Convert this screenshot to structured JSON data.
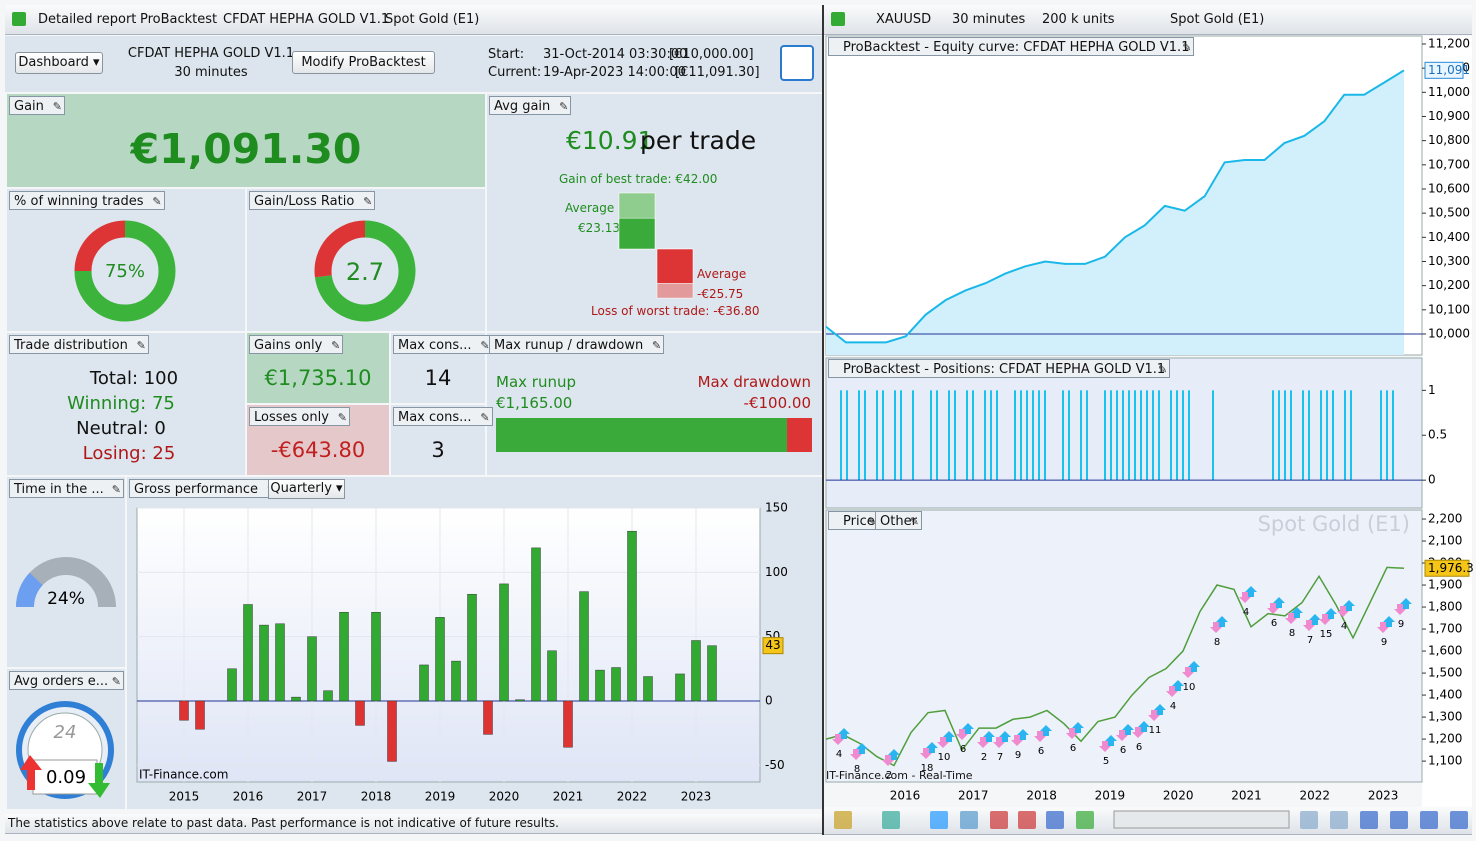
{
  "left": {
    "tabs": [
      "Detailed report",
      "ProBacktest",
      "CFDAT HEPHA GOLD V1.1",
      "Spot Gold (E1)"
    ],
    "toolbar": {
      "dashboard": "Dashboard",
      "system": "CFDAT HEPHA GOLD V1.1",
      "timeframe": "30 minutes",
      "modify": "Modify ProBacktest",
      "start_label": "Start:",
      "start_date": "31-Oct-2014 03:30:00",
      "start_capital": "[€10,000.00]",
      "current_label": "Current:",
      "current_date": "19-Apr-2023 14:00:00",
      "current_capital": "[€11,091.30]"
    },
    "gain": {
      "title": "Gain",
      "value": "€1,091.30"
    },
    "avg_gain": {
      "title": "Avg gain",
      "value": "€10.91",
      "unit": "per trade",
      "best_label": "Gain of best trade:",
      "best": {
        "value": 42,
        "label": "€42.00"
      },
      "average_win_label": "Average",
      "average_win": {
        "value": 23.13,
        "label": "€23.13"
      },
      "average_loss_label": "Average",
      "average_loss": {
        "value": -25.75,
        "label": "-€25.75"
      },
      "worst_label": "Loss of worst trade:",
      "worst": {
        "value": -36.8,
        "label": "-€36.80"
      }
    },
    "win_pct": {
      "title": "% of winning trades",
      "value": 75,
      "label": "75%"
    },
    "gl_ratio": {
      "title": "Gain/Loss Ratio",
      "value": 2.7
    },
    "distribution": {
      "title": "Trade distribution",
      "total": "Total: 100",
      "winning": "Winning: 75",
      "neutral": "Neutral: 0",
      "losing": "Losing: 25"
    },
    "gains_only": {
      "title": "Gains only",
      "value": "€1,735.10"
    },
    "losses_only": {
      "title": "Losses only",
      "value": "-€643.80"
    },
    "max_cons_win": {
      "title": "Max cons...",
      "value": 14
    },
    "max_cons_loss": {
      "title": "Max cons...",
      "value": 3
    },
    "runup": {
      "title": "Max runup / drawdown",
      "runup_label": "Max runup",
      "runup": {
        "value": 1165,
        "label": "€1,165.00"
      },
      "drawdown_label": "Max drawdown",
      "drawdown": {
        "value": -100,
        "label": "-€100.00"
      }
    },
    "time_in_market": {
      "title": "Time in the ...",
      "value": 24,
      "label": "24%"
    },
    "avg_orders": {
      "title": "Avg orders e...",
      "dial": 24,
      "value": 0.09
    },
    "gross": {
      "title": "Gross performance",
      "period": "Quarterly",
      "watermark": "IT-Finance.com",
      "categories": [
        "2015",
        null,
        null,
        null,
        "2016",
        null,
        null,
        null,
        "2017",
        null,
        null,
        null,
        "2018",
        null,
        null,
        null,
        "2019",
        null,
        null,
        null,
        "2020",
        null,
        null,
        null,
        "2021",
        null,
        null,
        null,
        "2022",
        null,
        null,
        null,
        "2023",
        null
      ],
      "values": [
        -15,
        -22,
        0,
        25,
        75,
        59,
        60,
        3,
        50,
        8,
        69,
        -19,
        69,
        -47,
        0,
        28,
        65,
        31,
        83,
        -26,
        91,
        1,
        119,
        39,
        -36,
        85,
        24,
        26,
        132,
        19,
        0,
        21,
        47,
        43
      ],
      "ylim": [
        -63,
        150
      ],
      "yticks": [
        -50,
        0,
        50,
        100,
        150
      ],
      "color": "#33a833",
      "neg_color": "#dd3333"
    },
    "status": "The statistics above relate to past data. Past performance is not indicative of future results."
  },
  "right": {
    "tabs": {
      "symbol": "XAUUSD",
      "timeframe": "30 minutes",
      "units": "200 k units",
      "instrument": "Spot Gold (E1)"
    },
    "equity": {
      "title": "ProBacktest - Equity curve: CFDAT HEPHA GOLD V1.1",
      "color": "#1ab8e8",
      "values": [
        10030,
        9965,
        9965,
        9965,
        9990,
        10080,
        10140,
        10180,
        10210,
        10250,
        10280,
        10300,
        10290,
        10290,
        10320,
        10400,
        10450,
        10530,
        10510,
        10570,
        10710,
        10720,
        10720,
        10790,
        10820,
        10880,
        10990,
        10990,
        11040,
        11091
      ],
      "ylim": [
        9913,
        11233
      ],
      "yticks": [
        {
          "value": 10000,
          "label": "10,000"
        },
        {
          "value": 10100,
          "label": "10,100"
        },
        {
          "value": 10200,
          "label": "10,200"
        },
        {
          "value": 10300,
          "label": "10,300"
        },
        {
          "value": 10400,
          "label": "10,400"
        },
        {
          "value": 10500,
          "label": "10,500"
        },
        {
          "value": 10600,
          "label": "10,600"
        },
        {
          "value": 10700,
          "label": "10,700"
        },
        {
          "value": 10800,
          "label": "10,800"
        },
        {
          "value": 10900,
          "label": "10,900"
        },
        {
          "value": 11000,
          "label": "11,000"
        },
        {
          "value": 11100,
          "label": "11,100"
        },
        {
          "value": 11200,
          "label": "11,200"
        }
      ],
      "last": {
        "value": 11091,
        "label": "11,091"
      }
    },
    "positions": {
      "title": "ProBacktest - Positions: CFDAT HEPHA GOLD V1.1",
      "color": "#19c3ee",
      "values": [
        0,
        0,
        1,
        1,
        0,
        1,
        1,
        0,
        1,
        1,
        0,
        1,
        1,
        0,
        1,
        0,
        0,
        1,
        1,
        0,
        1,
        1,
        0,
        1,
        1,
        0,
        1,
        1,
        1,
        0,
        0,
        1,
        1,
        1,
        1,
        1,
        1,
        0,
        0,
        1,
        1,
        0,
        1,
        1,
        0,
        0,
        1,
        1,
        1,
        1,
        1,
        1,
        1,
        1,
        1,
        1,
        0,
        1,
        1,
        1,
        1,
        0,
        0,
        0,
        1,
        0,
        0,
        0,
        0,
        0,
        0,
        0,
        0,
        0,
        1,
        1,
        1,
        1,
        0,
        1,
        1,
        0,
        1,
        1,
        1,
        0,
        1,
        1,
        0,
        0,
        0,
        0,
        1,
        1,
        1,
        0,
        0
      ],
      "ylim": [
        -0.31,
        1.36
      ],
      "yticks": [
        0,
        0.5,
        1
      ]
    },
    "price": {
      "tabs": [
        "Price",
        "Other"
      ],
      "watermark": "Spot Gold (E1)",
      "color": "#4f9e3c",
      "values": [
        1200,
        1220,
        1180,
        1120,
        1080,
        1230,
        1320,
        1330,
        1150,
        1250,
        1250,
        1290,
        1300,
        1330,
        1270,
        1190,
        1280,
        1300,
        1400,
        1480,
        1520,
        1600,
        1780,
        1900,
        1880,
        1710,
        1770,
        1760,
        1820,
        1940,
        1810,
        1660,
        1820,
        1980,
        1976.3
      ],
      "ylim": [
        1005,
        2241
      ],
      "yticks": [
        {
          "value": 1100,
          "label": "1,100"
        },
        {
          "value": 1200,
          "label": "1,200"
        },
        {
          "value": 1300,
          "label": "1,300"
        },
        {
          "value": 1400,
          "label": "1,400"
        },
        {
          "value": 1500,
          "label": "1,500"
        },
        {
          "value": 1600,
          "label": "1,600"
        },
        {
          "value": 1700,
          "label": "1,700"
        },
        {
          "value": 1800,
          "label": "1,800"
        },
        {
          "value": 1900,
          "label": "1,900"
        },
        {
          "value": 2000,
          "label": "2,000"
        },
        {
          "value": 2100,
          "label": "2,100"
        },
        {
          "value": 2200,
          "label": "2,200"
        }
      ],
      "last": {
        "value": 1976.3,
        "label": "1,976.3"
      },
      "annotations": [
        "4",
        "8",
        "2",
        "18",
        "10",
        "6",
        "2",
        "7",
        "9",
        "6",
        "6",
        "5",
        "6",
        "6",
        "11",
        "4",
        "10",
        "8",
        "4",
        "6",
        "8",
        "7",
        "15",
        "4",
        "9",
        "9"
      ],
      "source": "IT-Finance.com - Real-Time"
    },
    "years": [
      "2016",
      "2017",
      "2018",
      "2019",
      "2020",
      "2021",
      "2022",
      "2023"
    ]
  }
}
